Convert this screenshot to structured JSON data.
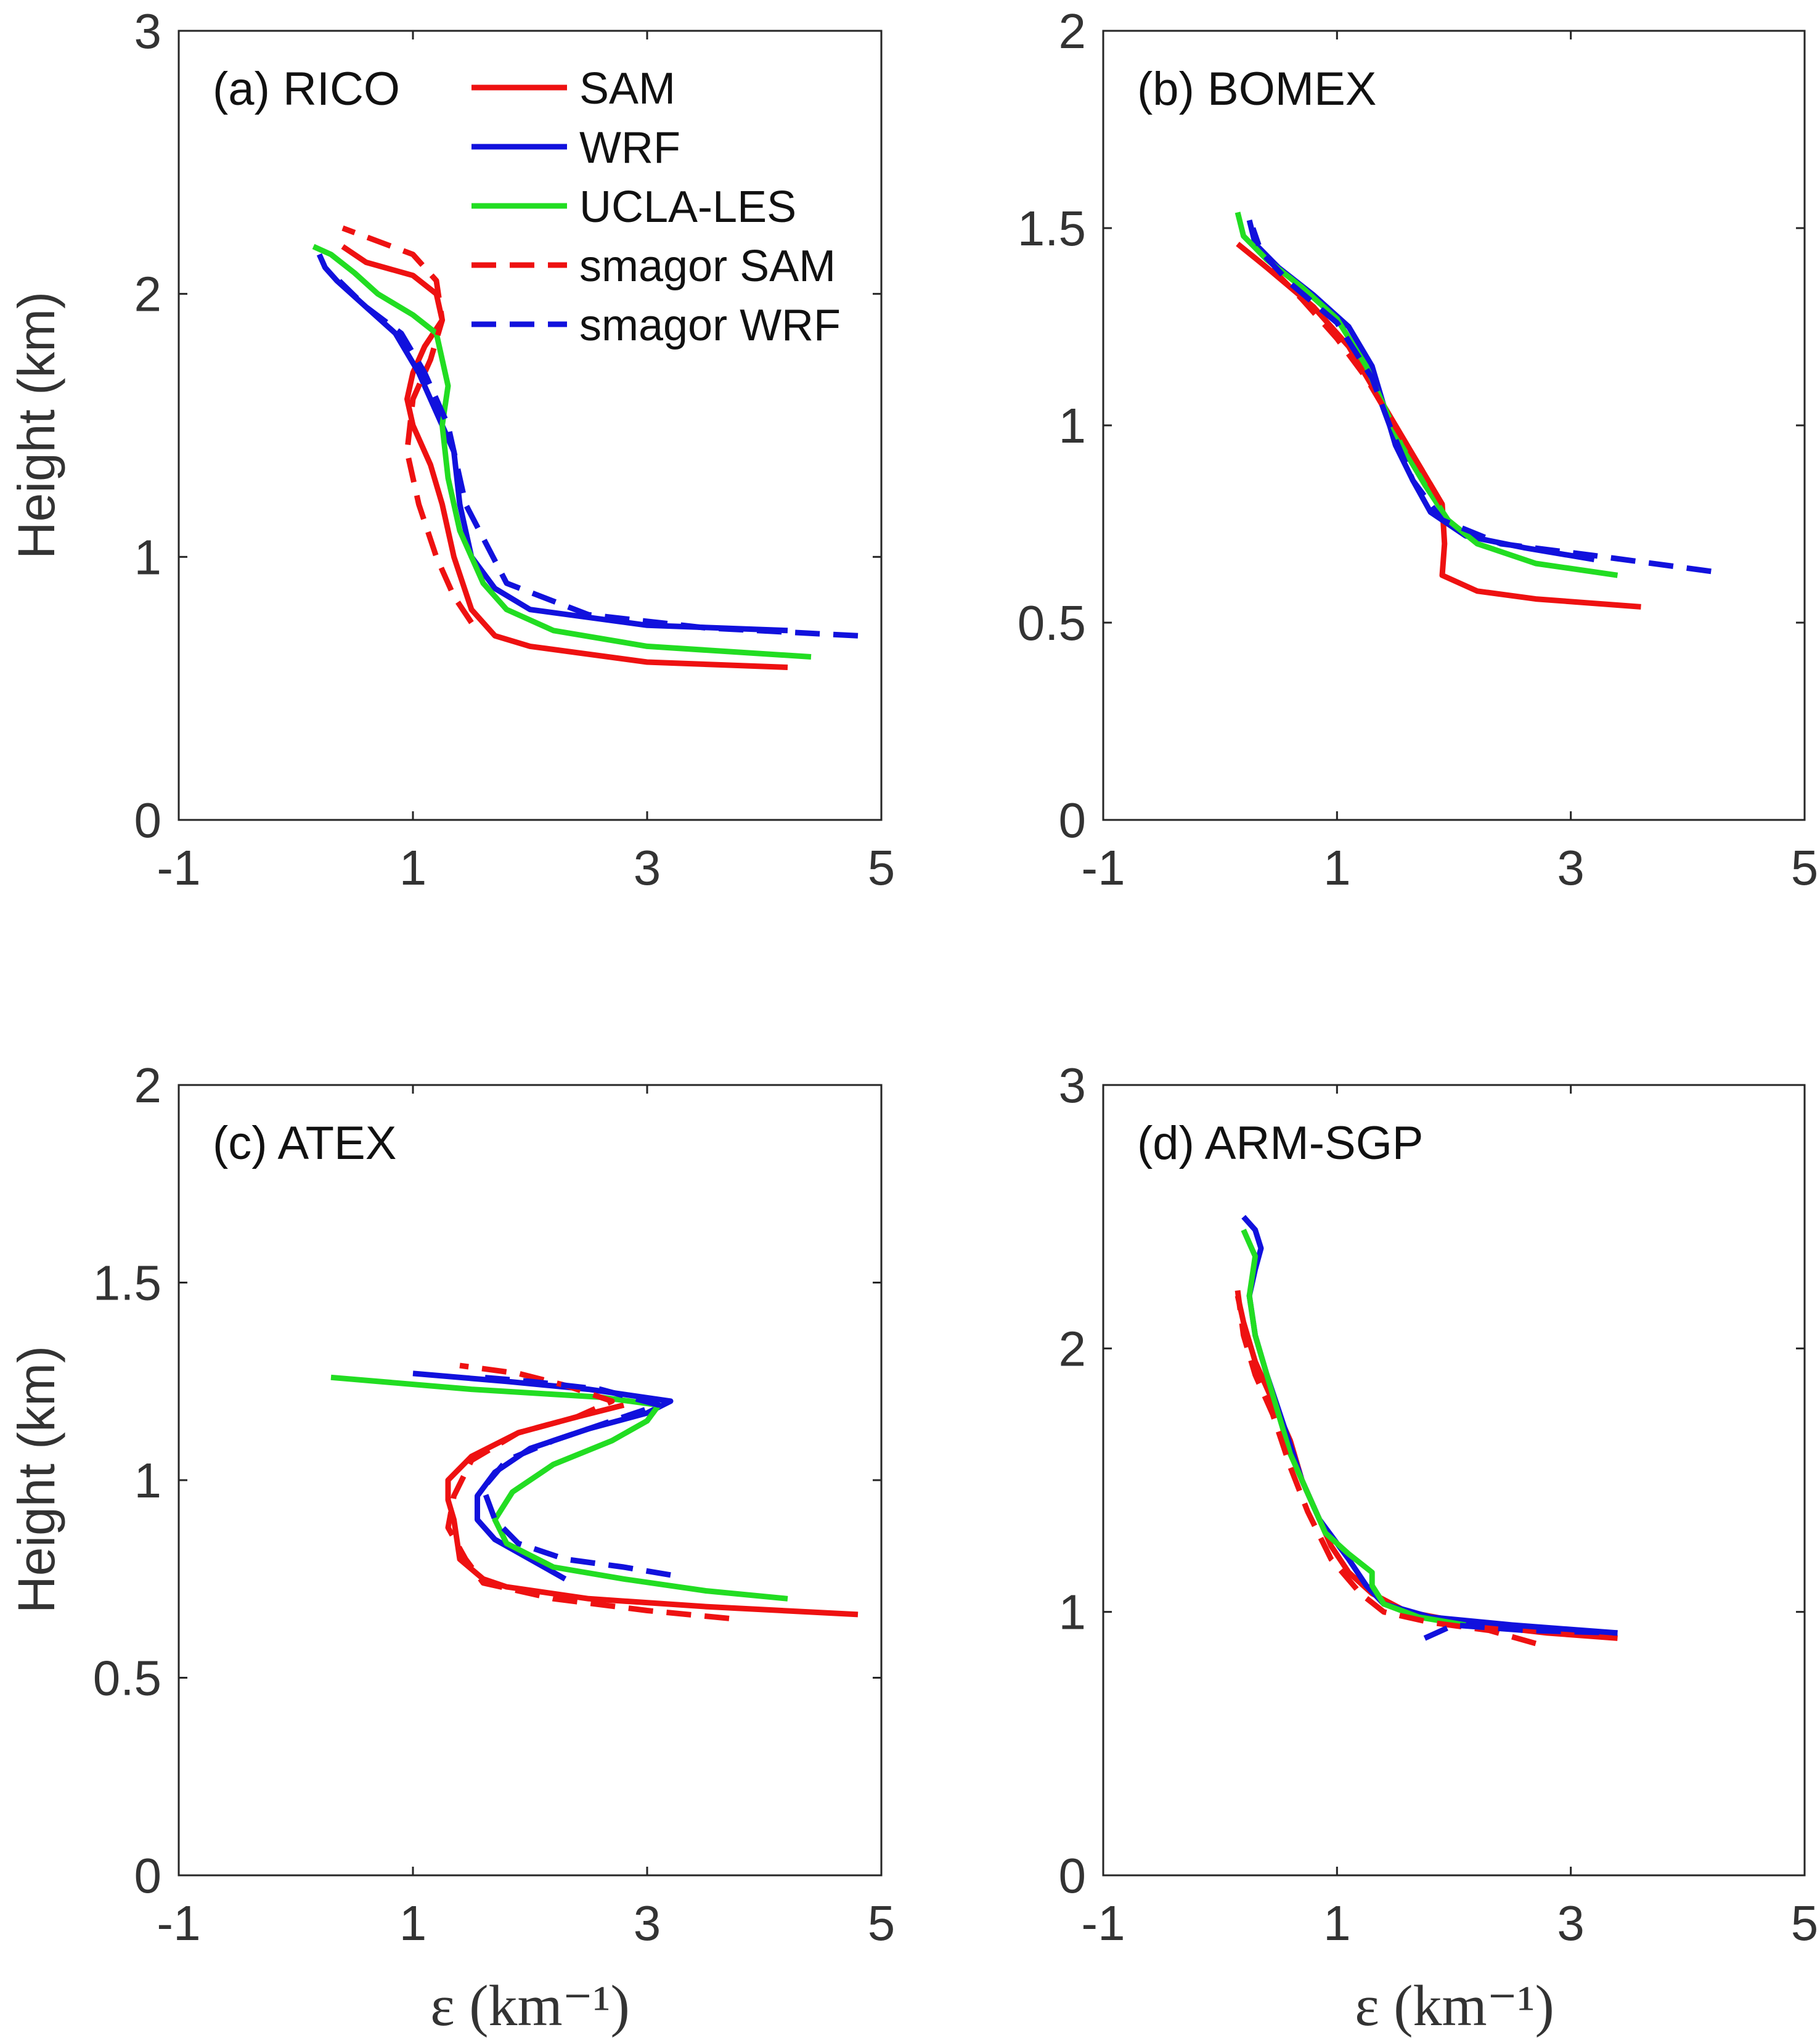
{
  "colors": {
    "SAM": "#ee1111",
    "WRF": "#1111dd",
    "UCLA-LES": "#22dd22"
  },
  "legend": [
    {
      "name": "SAM",
      "color": "#ee1111",
      "dash": false
    },
    {
      "name": "WRF",
      "color": "#1111dd",
      "dash": false
    },
    {
      "name": "UCLA-LES",
      "color": "#22dd22",
      "dash": false
    },
    {
      "name": "smagor SAM",
      "color": "#ee1111",
      "dash": true
    },
    {
      "name": "smagor WRF",
      "color": "#1111dd",
      "dash": true
    }
  ],
  "chart_data": [
    {
      "type": "line",
      "title": "(a) RICO",
      "xlabel": "",
      "ylabel": "Height (km)",
      "xlim": [
        -1,
        5
      ],
      "ylim": [
        0,
        3
      ],
      "xticks": [
        "-1",
        "1",
        "3",
        "5"
      ],
      "yticks": [
        "0",
        "1",
        "2",
        "3"
      ],
      "legend_position": "top-right",
      "series": [
        {
          "name": "SAM",
          "color": "#ee1111",
          "dash": false,
          "x": [
            4.2,
            3.0,
            2.0,
            1.7,
            1.5,
            1.35,
            1.25,
            1.15,
            1.0,
            0.95,
            1.0,
            1.1,
            1.25,
            1.2,
            1.0,
            0.6,
            0.4
          ],
          "y": [
            0.58,
            0.6,
            0.66,
            0.7,
            0.8,
            1.0,
            1.2,
            1.35,
            1.5,
            1.6,
            1.7,
            1.8,
            1.9,
            2.0,
            2.07,
            2.12,
            2.18
          ]
        },
        {
          "name": "WRF",
          "color": "#1111dd",
          "dash": false,
          "x": [
            4.2,
            3.0,
            2.0,
            1.7,
            1.5,
            1.4,
            1.35,
            1.2,
            1.05,
            0.85,
            0.6,
            0.35,
            0.25,
            0.2
          ],
          "y": [
            0.72,
            0.74,
            0.8,
            0.88,
            1.0,
            1.2,
            1.4,
            1.55,
            1.7,
            1.85,
            1.95,
            2.05,
            2.1,
            2.15
          ]
        },
        {
          "name": "UCLA-LES",
          "color": "#22dd22",
          "dash": false,
          "x": [
            4.4,
            3.0,
            2.2,
            1.8,
            1.6,
            1.4,
            1.3,
            1.25,
            1.3,
            1.25,
            1.2,
            1.0,
            0.7,
            0.5,
            0.3,
            0.15
          ],
          "y": [
            0.62,
            0.66,
            0.72,
            0.8,
            0.9,
            1.1,
            1.3,
            1.5,
            1.65,
            1.75,
            1.85,
            1.92,
            2.0,
            2.08,
            2.15,
            2.18
          ]
        },
        {
          "name": "smagor SAM",
          "color": "#ee1111",
          "dash": true,
          "x": [
            1.5,
            1.35,
            1.2,
            1.05,
            0.95,
            1.0,
            1.15,
            1.25,
            1.2,
            1.0,
            0.7,
            0.4
          ],
          "y": [
            0.75,
            0.85,
            1.0,
            1.2,
            1.4,
            1.6,
            1.75,
            1.9,
            2.05,
            2.15,
            2.2,
            2.25
          ]
        },
        {
          "name": "smagor WRF",
          "color": "#1111dd",
          "dash": true,
          "x": [
            4.8,
            3.5,
            2.5,
            1.8,
            1.45,
            1.3,
            1.1,
            0.9,
            0.6,
            0.3
          ],
          "y": [
            0.7,
            0.73,
            0.78,
            0.9,
            1.2,
            1.5,
            1.7,
            1.85,
            1.95,
            2.08
          ]
        }
      ]
    },
    {
      "type": "line",
      "title": "(b) BOMEX",
      "xlabel": "",
      "ylabel": "",
      "xlim": [
        -1,
        5
      ],
      "ylim": [
        0,
        2
      ],
      "xticks": [
        "-1",
        "1",
        "3",
        "5"
      ],
      "yticks": [
        "0",
        "0.5",
        "1",
        "1.5",
        "2"
      ],
      "series": [
        {
          "name": "SAM",
          "color": "#ee1111",
          "dash": false,
          "x": [
            3.6,
            2.7,
            2.2,
            1.9,
            1.92,
            1.9,
            1.7,
            1.5,
            1.3,
            1.1,
            0.8,
            0.4,
            0.15
          ],
          "y": [
            0.54,
            0.56,
            0.58,
            0.62,
            0.7,
            0.8,
            0.9,
            1.0,
            1.1,
            1.2,
            1.3,
            1.4,
            1.46
          ]
        },
        {
          "name": "WRF",
          "color": "#1111dd",
          "dash": false,
          "x": [
            3.2,
            2.6,
            2.1,
            1.8,
            1.65,
            1.5,
            1.4,
            1.3,
            1.1,
            0.8,
            0.5,
            0.3,
            0.25
          ],
          "y": [
            0.66,
            0.69,
            0.72,
            0.78,
            0.86,
            0.95,
            1.05,
            1.15,
            1.25,
            1.33,
            1.4,
            1.46,
            1.52
          ]
        },
        {
          "name": "UCLA-LES",
          "color": "#22dd22",
          "dash": false,
          "x": [
            3.4,
            2.7,
            2.2,
            1.95,
            1.75,
            1.55,
            1.4,
            1.25,
            1.0,
            0.7,
            0.4,
            0.2,
            0.15
          ],
          "y": [
            0.62,
            0.65,
            0.7,
            0.76,
            0.85,
            0.95,
            1.05,
            1.15,
            1.27,
            1.35,
            1.42,
            1.48,
            1.54
          ]
        },
        {
          "name": "smagor SAM",
          "color": "#ee1111",
          "dash": true,
          "x": [
            1.9,
            1.7,
            1.45,
            1.25,
            1.0,
            0.7,
            0.4
          ],
          "y": [
            0.8,
            0.9,
            1.02,
            1.12,
            1.22,
            1.32,
            1.41
          ]
        },
        {
          "name": "smagor WRF",
          "color": "#1111dd",
          "dash": true,
          "x": [
            4.2,
            3.2,
            2.4,
            1.9,
            1.65,
            1.45,
            1.3,
            1.0,
            0.6,
            0.35,
            0.28
          ],
          "y": [
            0.63,
            0.67,
            0.7,
            0.76,
            0.86,
            1.0,
            1.12,
            1.26,
            1.36,
            1.44,
            1.5
          ]
        }
      ]
    },
    {
      "type": "line",
      "title": "(c) ATEX",
      "xlabel": "ε (km⁻¹)",
      "ylabel": "Height (km)",
      "xlim": [
        -1,
        5
      ],
      "ylim": [
        0,
        2
      ],
      "xticks": [
        "-1",
        "1",
        "3",
        "5"
      ],
      "yticks": [
        "0",
        "0.5",
        "1",
        "1.5",
        "2"
      ],
      "series": [
        {
          "name": "SAM",
          "color": "#ee1111",
          "dash": false,
          "x": [
            4.8,
            3.5,
            2.5,
            1.8,
            1.6,
            1.4,
            1.35,
            1.3,
            1.3,
            1.5,
            1.9,
            2.4,
            2.8
          ],
          "y": [
            0.66,
            0.68,
            0.7,
            0.73,
            0.75,
            0.8,
            0.9,
            0.95,
            1.0,
            1.06,
            1.12,
            1.16,
            1.19
          ]
        },
        {
          "name": "WRF",
          "color": "#1111dd",
          "dash": false,
          "x": [
            2.3,
            2.0,
            1.7,
            1.55,
            1.55,
            1.7,
            2.0,
            2.5,
            3.0,
            3.2,
            2.5,
            1.8,
            1.0
          ],
          "y": [
            0.75,
            0.8,
            0.85,
            0.9,
            0.96,
            1.02,
            1.08,
            1.13,
            1.17,
            1.2,
            1.23,
            1.25,
            1.27
          ]
        },
        {
          "name": "UCLA-LES",
          "color": "#22dd22",
          "dash": false,
          "x": [
            4.2,
            3.5,
            2.8,
            2.2,
            1.8,
            1.7,
            1.85,
            2.2,
            2.7,
            3.0,
            3.1,
            2.6,
            1.5,
            0.3
          ],
          "y": [
            0.7,
            0.72,
            0.75,
            0.78,
            0.84,
            0.9,
            0.97,
            1.04,
            1.1,
            1.15,
            1.19,
            1.21,
            1.23,
            1.26
          ]
        },
        {
          "name": "smagor SAM",
          "color": "#ee1111",
          "dash": true,
          "x": [
            3.7,
            3.0,
            2.2,
            1.6,
            1.45,
            1.3,
            1.35,
            1.5,
            1.9,
            2.4,
            2.7,
            2.3,
            1.9,
            1.4
          ],
          "y": [
            0.65,
            0.67,
            0.7,
            0.74,
            0.8,
            0.88,
            0.96,
            1.05,
            1.12,
            1.16,
            1.2,
            1.24,
            1.27,
            1.29
          ]
        },
        {
          "name": "smagor WRF",
          "color": "#1111dd",
          "dash": true,
          "x": [
            3.2,
            2.8,
            2.3,
            1.9,
            1.7,
            1.6,
            1.8,
            2.2,
            2.7,
            3.1,
            2.6,
            2.0,
            1.6
          ],
          "y": [
            0.76,
            0.78,
            0.8,
            0.84,
            0.9,
            0.98,
            1.05,
            1.1,
            1.15,
            1.19,
            1.23,
            1.25,
            1.26
          ]
        }
      ]
    },
    {
      "type": "line",
      "title": "(d) ARM-SGP",
      "xlabel": "ε (km⁻¹)",
      "ylabel": "",
      "xlim": [
        -1,
        5
      ],
      "ylim": [
        0,
        3
      ],
      "xticks": [
        "-1",
        "1",
        "3",
        "5"
      ],
      "yticks": [
        "0",
        "1",
        "2",
        "3"
      ],
      "series": [
        {
          "name": "SAM",
          "color": "#ee1111",
          "dash": false,
          "x": [
            3.4,
            2.8,
            2.2,
            1.6,
            1.3,
            1.1,
            0.95,
            0.85,
            0.7,
            0.6,
            0.45,
            0.3,
            0.2,
            0.15
          ],
          "y": [
            0.9,
            0.92,
            0.95,
            1.0,
            1.07,
            1.15,
            1.25,
            1.35,
            1.5,
            1.65,
            1.8,
            1.95,
            2.1,
            2.2
          ]
        },
        {
          "name": "WRF",
          "color": "#1111dd",
          "dash": false,
          "x": [
            3.4,
            2.5,
            1.8,
            1.4,
            1.25,
            1.1,
            0.85,
            0.7,
            0.55,
            0.4,
            0.3,
            0.25,
            0.3,
            0.35,
            0.3,
            0.2
          ],
          "y": [
            0.92,
            0.95,
            0.98,
            1.03,
            1.1,
            1.2,
            1.35,
            1.5,
            1.7,
            1.9,
            2.05,
            2.2,
            2.3,
            2.38,
            2.45,
            2.5
          ]
        },
        {
          "name": "UCLA-LES",
          "color": "#22dd22",
          "dash": false,
          "x": [
            2.1,
            1.7,
            1.4,
            1.3,
            1.3,
            1.1,
            0.9,
            0.75,
            0.6,
            0.5,
            0.4,
            0.3,
            0.25,
            0.3,
            0.2
          ],
          "y": [
            0.95,
            0.98,
            1.03,
            1.1,
            1.15,
            1.22,
            1.3,
            1.45,
            1.6,
            1.75,
            1.9,
            2.05,
            2.2,
            2.35,
            2.45
          ]
        },
        {
          "name": "smagor SAM",
          "color": "#ee1111",
          "dash": true,
          "x": [
            2.7,
            2.3,
            1.8,
            1.4,
            1.2,
            0.95,
            0.75,
            0.6,
            0.45,
            0.3,
            0.2,
            0.15
          ],
          "y": [
            0.88,
            0.93,
            0.96,
            1.0,
            1.07,
            1.2,
            1.38,
            1.55,
            1.75,
            1.9,
            2.05,
            2.22
          ]
        },
        {
          "name": "smagor WRF",
          "color": "#1111dd",
          "dash": true,
          "x": [
            1.75,
            2.0,
            2.6,
            3.4
          ],
          "y": [
            0.9,
            0.95,
            0.93,
            0.92
          ]
        }
      ]
    }
  ]
}
